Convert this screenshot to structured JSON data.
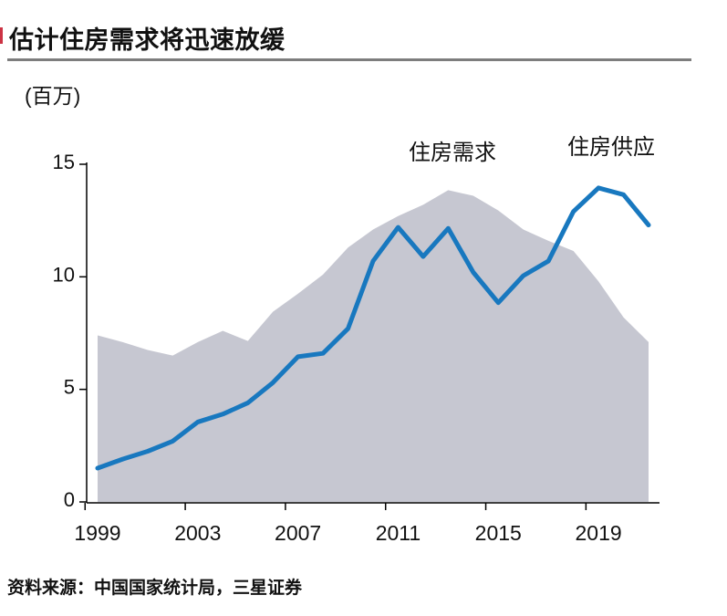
{
  "header": {
    "title": "估计住房需求将迅速放缓"
  },
  "colors": {
    "accent": "#cc3344",
    "demand_line": "#1878bf",
    "supply_area": "#c6c7d1",
    "axis": "#000000",
    "text": "#111111"
  },
  "chart_data": {
    "type": "area",
    "title": "估计住房需求将迅速放缓",
    "unit_label": "(百万)",
    "xlabel": "",
    "ylabel": "(百万)",
    "ylim": [
      0,
      15
    ],
    "grid": false,
    "legend_position": "inline-annotations",
    "x": [
      1999,
      2000,
      2001,
      2002,
      2003,
      2004,
      2005,
      2006,
      2007,
      2008,
      2009,
      2010,
      2011,
      2012,
      2013,
      2014,
      2015,
      2016,
      2017,
      2018,
      2019,
      2020,
      2021
    ],
    "series": [
      {
        "name": "住房供应",
        "type": "area",
        "color": "#c6c7d1",
        "values": [
          7.4,
          7.1,
          6.75,
          6.5,
          7.1,
          7.6,
          7.15,
          8.45,
          9.25,
          10.1,
          11.3,
          12.1,
          12.7,
          13.2,
          13.85,
          13.6,
          12.95,
          12.1,
          11.6,
          11.15,
          9.8,
          8.2,
          7.1
        ]
      },
      {
        "name": "住房需求",
        "type": "line",
        "color": "#1878bf",
        "values": [
          1.5,
          1.9,
          2.25,
          2.7,
          3.55,
          3.9,
          4.4,
          5.3,
          6.45,
          6.6,
          7.7,
          10.7,
          12.2,
          10.9,
          12.15,
          10.2,
          8.85,
          10.05,
          10.7,
          12.9,
          13.95,
          13.65,
          12.3
        ]
      }
    ],
    "y_ticks": [
      "0",
      "5",
      "10",
      "15"
    ],
    "y_tick_values": [
      0,
      5,
      10,
      15
    ],
    "x_ticks": [
      "1999",
      "2003",
      "2007",
      "2011",
      "2015",
      "2019"
    ],
    "x_tick_years": [
      1999,
      2003,
      2007,
      2011,
      2015,
      2019
    ]
  },
  "footer": {
    "source": "资料来源：中国国家统计局，三星证券"
  }
}
